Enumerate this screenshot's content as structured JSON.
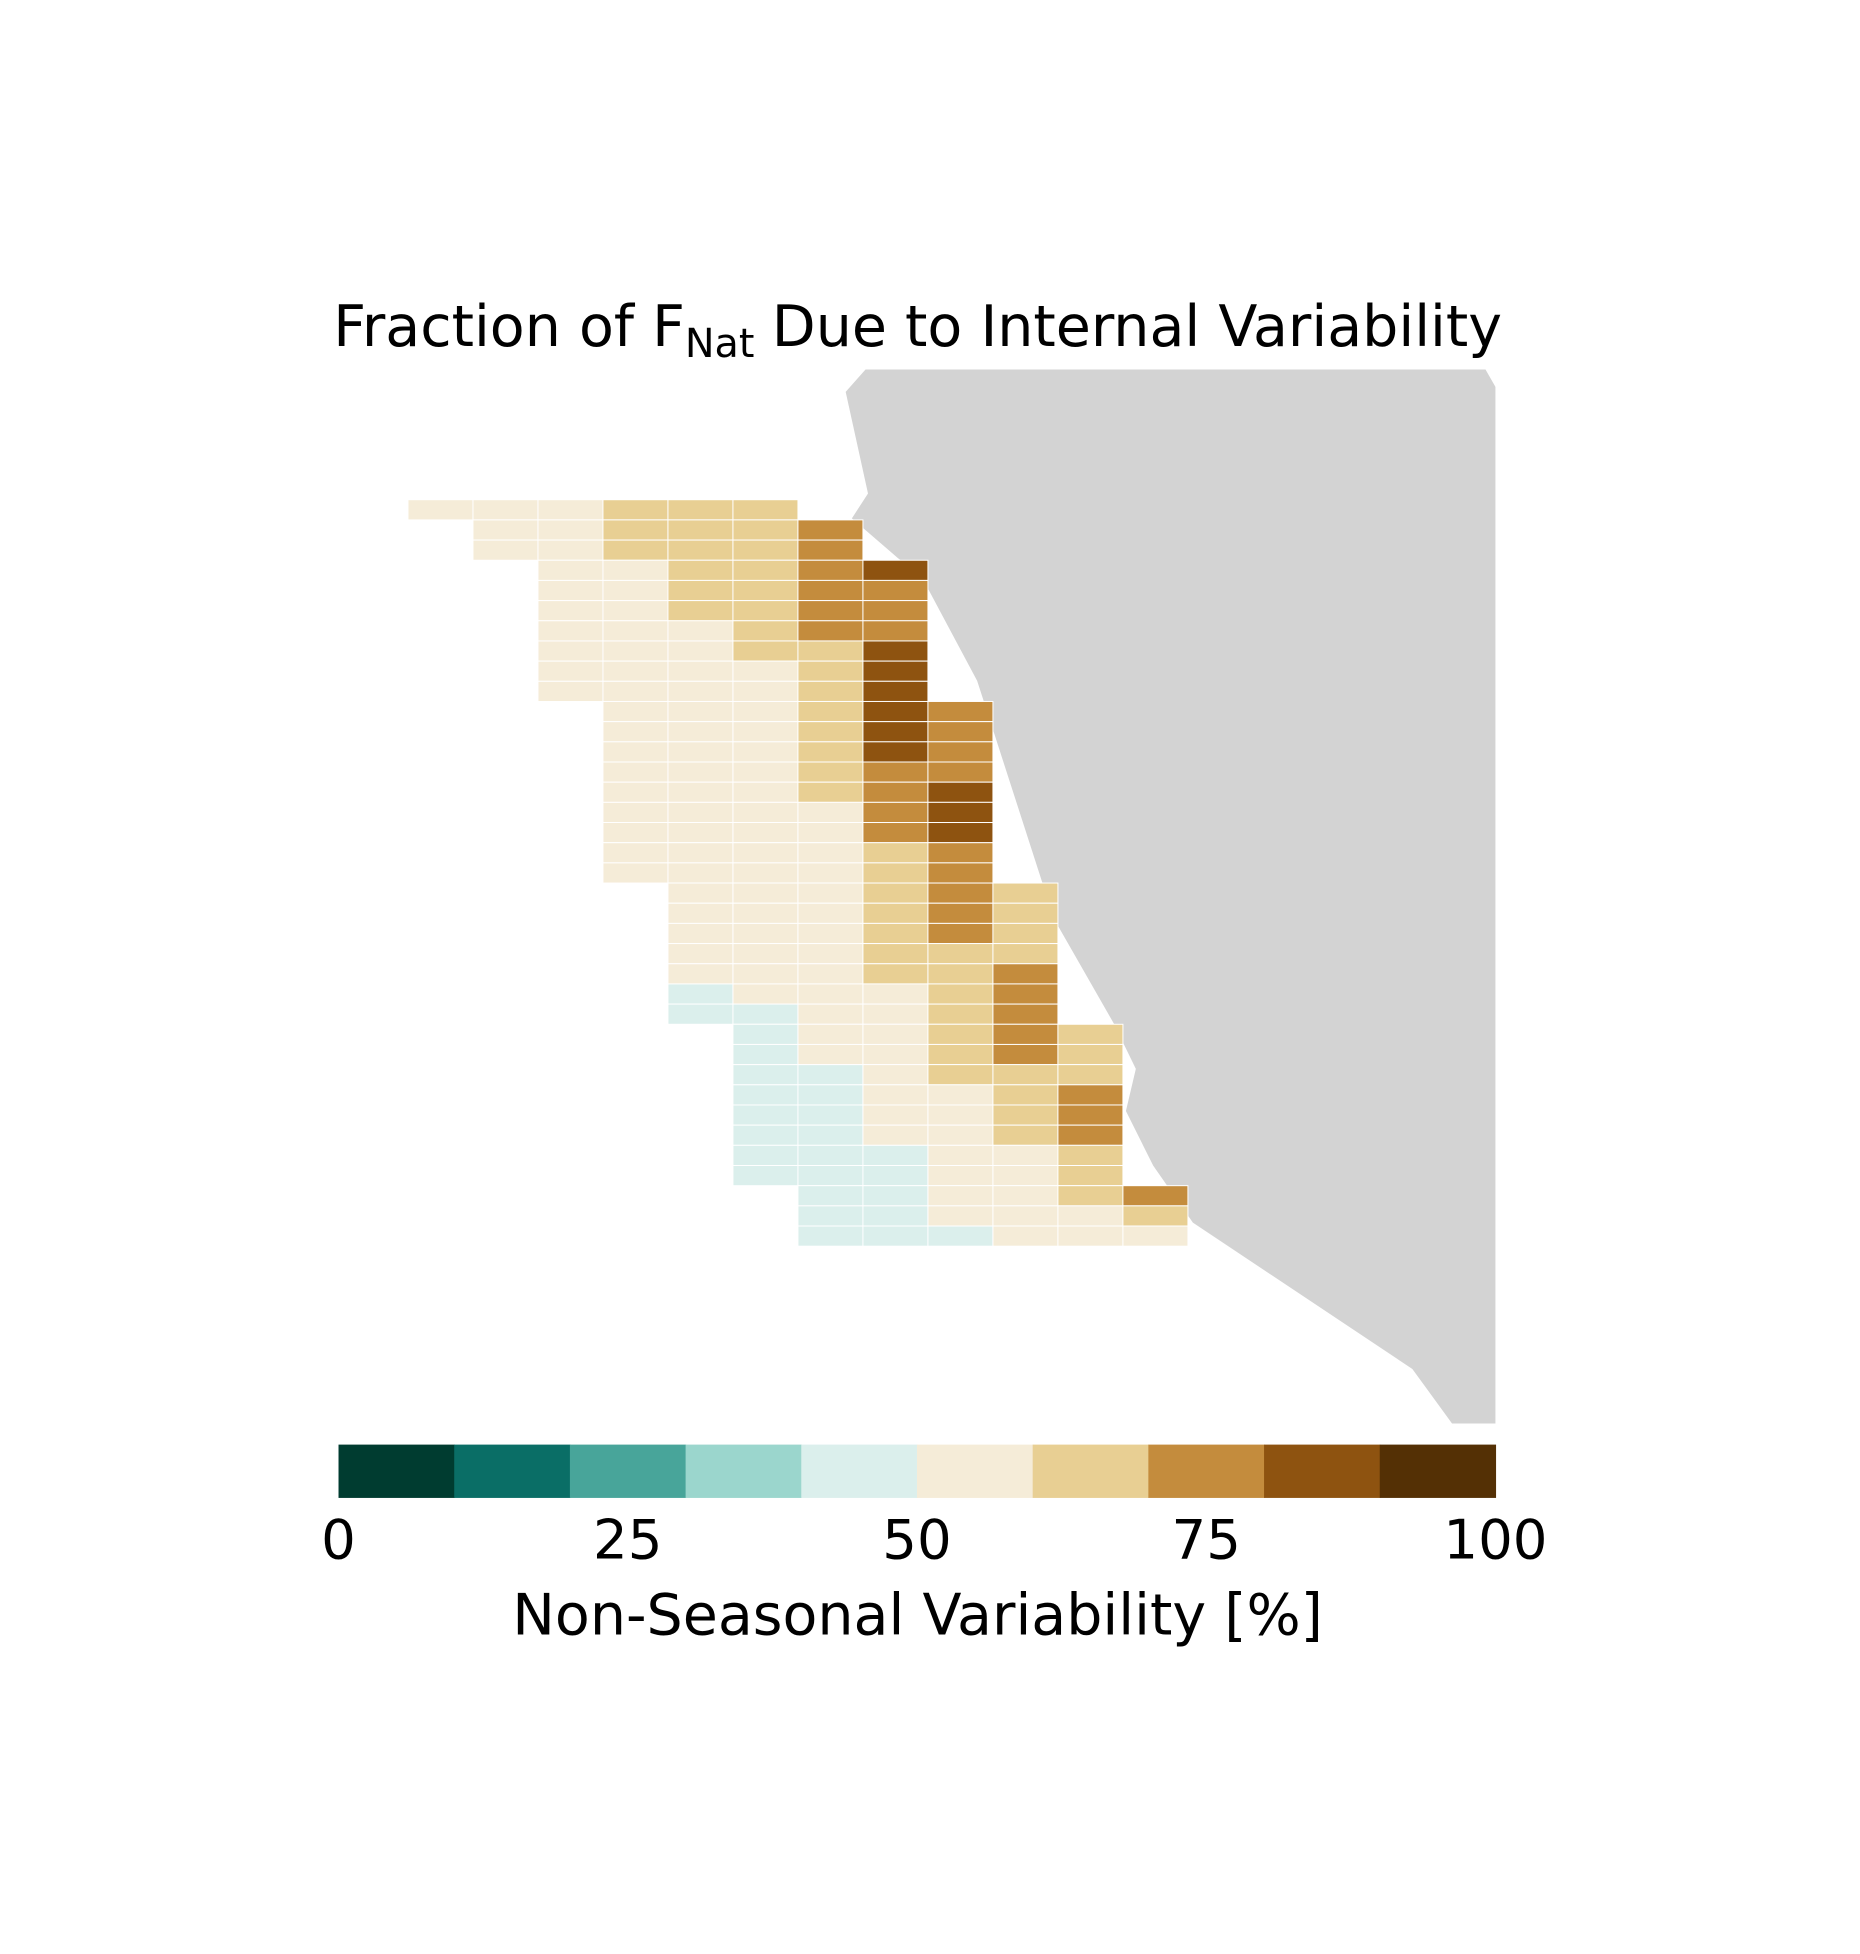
{
  "chart_data": {
    "type": "heatmap",
    "title": "Fraction of F",
    "title_subscript": "Nat",
    "title_rest": "Due to Internal Variability",
    "colorbar_label": "Non-Seasonal Variability [%]",
    "clim": [
      0,
      100
    ],
    "cticks": [
      0,
      25,
      50,
      75,
      100
    ],
    "colors": [
      "#003c30",
      "#0a6e66",
      "#48a59a",
      "#9bd6cd",
      "#dbefec",
      "#f5ecd8",
      "#e8cf93",
      "#c48c3d",
      "#8e5310",
      "#543005"
    ],
    "land_color": "#d3d3d3",
    "values": [
      [
        55,
        55,
        55,
        65,
        65,
        65,
        null,
        null,
        null,
        null,
        null,
        null
      ],
      [
        null,
        55,
        55,
        65,
        65,
        65,
        75,
        null,
        null,
        null,
        null,
        null
      ],
      [
        null,
        55,
        55,
        65,
        65,
        65,
        75,
        null,
        null,
        null,
        null,
        null
      ],
      [
        null,
        null,
        55,
        55,
        65,
        65,
        75,
        85,
        null,
        null,
        null,
        null
      ],
      [
        null,
        null,
        55,
        55,
        65,
        65,
        75,
        75,
        null,
        null,
        null,
        null
      ],
      [
        null,
        null,
        55,
        55,
        65,
        65,
        75,
        75,
        null,
        null,
        null,
        null
      ],
      [
        null,
        null,
        55,
        55,
        55,
        65,
        75,
        75,
        null,
        null,
        null,
        null
      ],
      [
        null,
        null,
        55,
        55,
        55,
        65,
        65,
        85,
        null,
        null,
        null,
        null
      ],
      [
        null,
        null,
        55,
        55,
        55,
        55,
        65,
        85,
        null,
        null,
        null,
        null
      ],
      [
        null,
        null,
        55,
        55,
        55,
        55,
        65,
        85,
        null,
        null,
        null,
        null
      ],
      [
        null,
        null,
        null,
        55,
        55,
        55,
        65,
        85,
        75,
        null,
        null,
        null
      ],
      [
        null,
        null,
        null,
        55,
        55,
        55,
        65,
        85,
        75,
        null,
        null,
        null
      ],
      [
        null,
        null,
        null,
        55,
        55,
        55,
        65,
        85,
        75,
        null,
        null,
        null
      ],
      [
        null,
        null,
        null,
        55,
        55,
        55,
        65,
        75,
        75,
        null,
        null,
        null
      ],
      [
        null,
        null,
        null,
        55,
        55,
        55,
        65,
        75,
        85,
        null,
        null,
        null
      ],
      [
        null,
        null,
        null,
        55,
        55,
        55,
        55,
        75,
        85,
        null,
        null,
        null
      ],
      [
        null,
        null,
        null,
        55,
        55,
        55,
        55,
        75,
        85,
        null,
        null,
        null
      ],
      [
        null,
        null,
        null,
        55,
        55,
        55,
        55,
        65,
        75,
        null,
        null,
        null
      ],
      [
        null,
        null,
        null,
        55,
        55,
        55,
        55,
        65,
        75,
        null,
        null,
        null
      ],
      [
        null,
        null,
        null,
        null,
        55,
        55,
        55,
        65,
        75,
        65,
        null,
        null
      ],
      [
        null,
        null,
        null,
        null,
        55,
        55,
        55,
        65,
        75,
        65,
        null,
        null
      ],
      [
        null,
        null,
        null,
        null,
        55,
        55,
        55,
        65,
        75,
        65,
        null,
        null
      ],
      [
        null,
        null,
        null,
        null,
        55,
        55,
        55,
        65,
        65,
        65,
        null,
        null
      ],
      [
        null,
        null,
        null,
        null,
        55,
        55,
        55,
        65,
        65,
        75,
        null,
        null
      ],
      [
        null,
        null,
        null,
        null,
        45,
        55,
        55,
        55,
        65,
        75,
        null,
        null
      ],
      [
        null,
        null,
        null,
        null,
        45,
        45,
        55,
        55,
        65,
        75,
        null,
        null
      ],
      [
        null,
        null,
        null,
        null,
        null,
        45,
        55,
        55,
        65,
        75,
        65,
        null
      ],
      [
        null,
        null,
        null,
        null,
        null,
        45,
        55,
        55,
        65,
        75,
        65,
        null
      ],
      [
        null,
        null,
        null,
        null,
        null,
        45,
        45,
        55,
        65,
        65,
        65,
        null
      ],
      [
        null,
        null,
        null,
        null,
        null,
        45,
        45,
        55,
        55,
        65,
        75,
        null
      ],
      [
        null,
        null,
        null,
        null,
        null,
        45,
        45,
        55,
        55,
        65,
        75,
        null
      ],
      [
        null,
        null,
        null,
        null,
        null,
        45,
        45,
        55,
        55,
        65,
        75,
        null
      ],
      [
        null,
        null,
        null,
        null,
        null,
        45,
        45,
        45,
        55,
        55,
        65,
        null
      ],
      [
        null,
        null,
        null,
        null,
        null,
        45,
        45,
        45,
        55,
        55,
        65,
        null
      ],
      [
        null,
        null,
        null,
        null,
        null,
        null,
        45,
        45,
        55,
        55,
        65,
        75
      ],
      [
        null,
        null,
        null,
        null,
        null,
        null,
        45,
        45,
        55,
        55,
        55,
        65
      ],
      [
        null,
        null,
        null,
        null,
        null,
        null,
        45,
        45,
        45,
        55,
        55,
        55
      ]
    ]
  }
}
